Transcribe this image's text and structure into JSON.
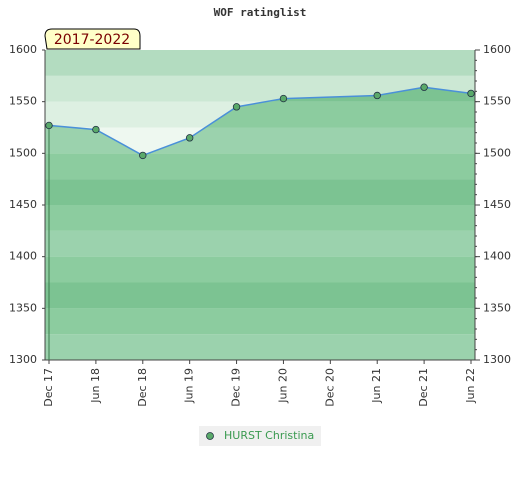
{
  "chart_data": {
    "type": "line",
    "title": "WOF ratinglist",
    "badge": "2017-2022",
    "x": [
      0,
      6,
      12,
      18,
      24,
      30,
      42,
      48,
      54
    ],
    "xlim": [
      0,
      54
    ],
    "xticks": [
      {
        "value": 0,
        "label": "Dec 17"
      },
      {
        "value": 6,
        "label": "Jun 18"
      },
      {
        "value": 12,
        "label": "Dec 18"
      },
      {
        "value": 18,
        "label": "Jun 19"
      },
      {
        "value": 24,
        "label": "Dec 19"
      },
      {
        "value": 30,
        "label": "Jun 20"
      },
      {
        "value": 36,
        "label": "Dec 20"
      },
      {
        "value": 42,
        "label": "Jun 21"
      },
      {
        "value": 48,
        "label": "Dec 21"
      },
      {
        "value": 54,
        "label": "Jun 22"
      }
    ],
    "ylim": [
      1300,
      1600
    ],
    "yticks": [
      1300,
      1350,
      1400,
      1450,
      1500,
      1550,
      1600
    ],
    "y2lim": [
      1300,
      1600
    ],
    "y2ticks": [
      1300,
      1350,
      1400,
      1450,
      1500,
      1550,
      1600
    ],
    "series": [
      {
        "name": "HURST Christina",
        "color": "#4a90d9",
        "marker_color": "#5aa96a",
        "values": [
          1527,
          1523,
          1498,
          1515,
          1545,
          1553,
          1556,
          1564,
          1558
        ]
      }
    ]
  }
}
